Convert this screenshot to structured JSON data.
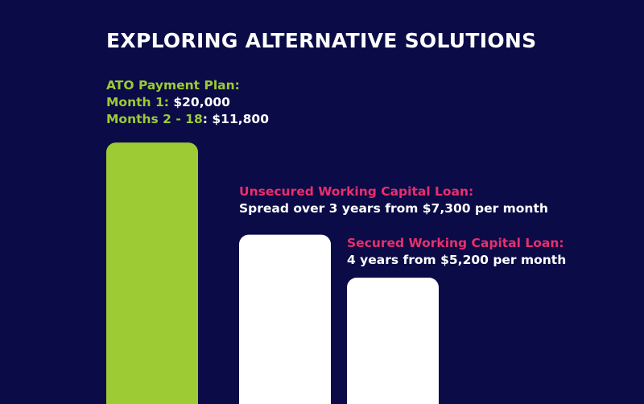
{
  "title": "EXPLORING ALTERNATIVE SOLUTIONS",
  "colors": {
    "background": "#0b0b47",
    "green": "#9ccb34",
    "pink": "#ea2e6c",
    "white": "#ffffff"
  },
  "chart_data": {
    "type": "bar",
    "title": "EXPLORING ALTERNATIVE SOLUTIONS",
    "categories": [
      "ATO Payment Plan",
      "Unsecured Working Capital Loan",
      "Secured Working Capital Loan"
    ],
    "values": [
      11800,
      7300,
      5200
    ],
    "unit": "$ per month",
    "grid": false,
    "bar_colors": [
      "#9ccb34",
      "#ffffff",
      "#ffffff"
    ],
    "annotations": [
      {
        "heading": "ATO Payment Plan:",
        "lines": [
          {
            "label": "Month 1:",
            "value": "$20,000"
          },
          {
            "label": "Months 2 - 18",
            "sep": ":",
            "value": "$11,800"
          }
        ]
      },
      {
        "heading": "Unsecured Working Capital Loan:",
        "text": "Spread over 3 years from $7,300 per month"
      },
      {
        "heading": "Secured Working Capital Loan:",
        "text": "4 years from $5,200 per month"
      }
    ]
  }
}
